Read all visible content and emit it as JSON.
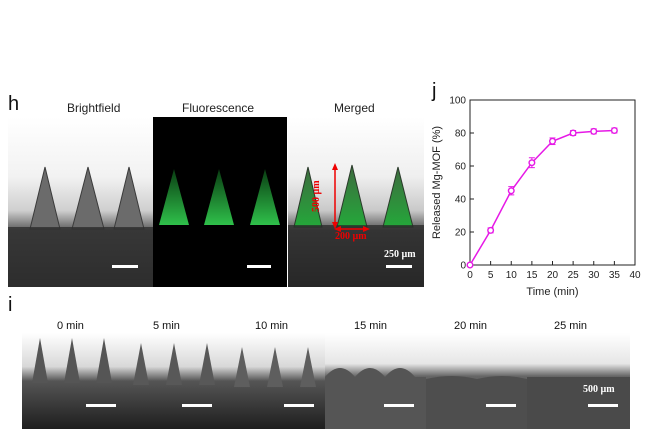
{
  "panel_h": {
    "letter": "h",
    "labels": [
      "Brightfield",
      "Fluorescence",
      "Merged"
    ],
    "height_annotation": "500 µm",
    "width_annotation": "200 µm",
    "scale_bar_label": "250 µm"
  },
  "panel_i": {
    "letter": "i",
    "time_labels": [
      "0 min",
      "5 min",
      "10 min",
      "15 min",
      "20 min",
      "25 min"
    ],
    "scale_bar_label": "500 µm"
  },
  "panel_j": {
    "letter": "j"
  },
  "chart_data": {
    "type": "line",
    "xlabel": "Time (min)",
    "ylabel": "Released Mg-MOF (%)",
    "xlim": [
      0,
      40
    ],
    "ylim": [
      0,
      100
    ],
    "x_ticks": [
      0,
      5,
      10,
      15,
      20,
      25,
      30,
      35,
      40
    ],
    "y_ticks": [
      0,
      20,
      40,
      60,
      80,
      100
    ],
    "grid": false,
    "series": [
      {
        "color": "#e619e6",
        "x": [
          0,
          5,
          10,
          15,
          20,
          25,
          30,
          35
        ],
        "values": [
          0,
          21,
          45,
          62,
          75,
          80,
          81,
          81.5
        ],
        "error": [
          0,
          1.5,
          2.5,
          3,
          2,
          1.5,
          1.5,
          1.5
        ]
      }
    ]
  }
}
